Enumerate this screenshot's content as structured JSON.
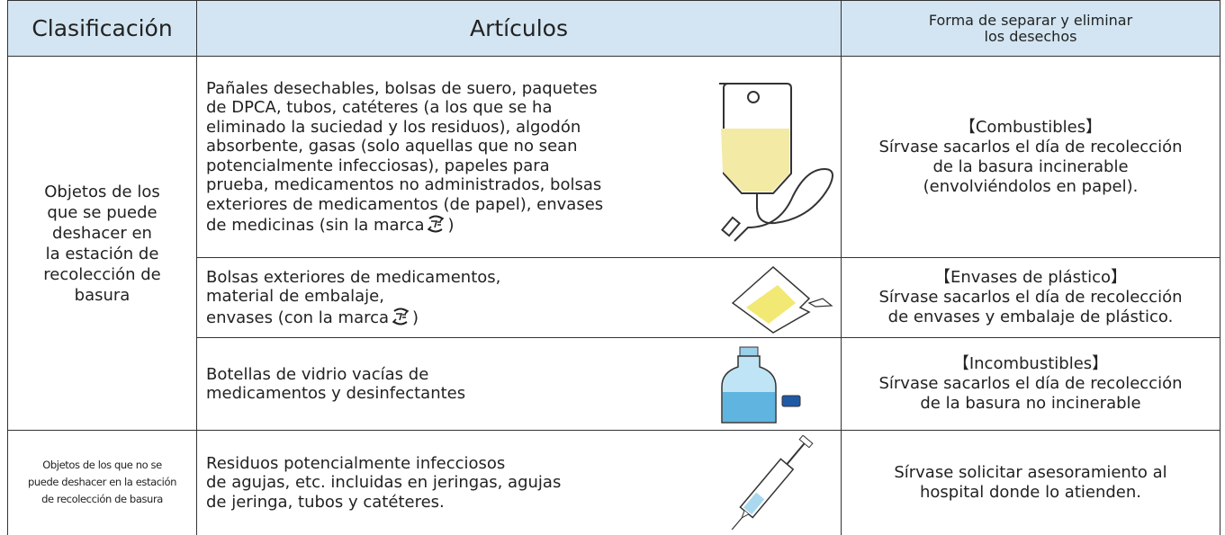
{
  "header": {
    "classification": "Clasificación",
    "articles": "Artículos",
    "disposal": [
      "Forma de separar y eliminar",
      "los desechos"
    ]
  },
  "groups": [
    {
      "classification": [
        "Objetos de los",
        "que se puede",
        "deshacer en",
        "la estación de",
        "recolección de",
        "basura"
      ],
      "rows": [
        {
          "articles": [
            "Pañales desechables, bolsas de suero, paquetes",
            "de DPCA, tubos, catéteres (a los que se ha",
            "eliminado la suciedad y los residuos), algodón",
            "absorbente, gasas (solo aquellas que no sean",
            "potencialmente infecciosas), papeles para",
            "prueba, medicamentos no administrados, bolsas",
            "exteriores de medicamentos (de papel), envases",
            "de medicinas (sin la marca"
          ],
          "articles_after_mark": ")",
          "disposal": [
            "【Combustibles】",
            "Sírvase sacarlos el día de recolección",
            "de la basura incinerable",
            "(envolviéndolos en papel)."
          ]
        },
        {
          "articles": [
            "Bolsas exteriores de medicamentos,",
            "material de embalaje,",
            "envases (con la marca"
          ],
          "articles_after_mark": ")",
          "disposal": [
            "【Envases de plástico】",
            "Sírvase sacarlos el día de recolección",
            "de envases y embalaje de plástico."
          ]
        },
        {
          "articles": [
            "Botellas de vidrio vacías de",
            "medicamentos y desinfectantes"
          ],
          "disposal": [
            "【Incombustibles】",
            "Sírvase sacarlos el día de recolección",
            "de la basura no incinerable"
          ]
        }
      ]
    },
    {
      "classification": [
        "Objetos de los que no se",
        "puede deshacer en la estación",
        "de recolección de basura"
      ],
      "rows": [
        {
          "articles": [
            "Residuos potencialmente infecciosos",
            "de agujas, etc. incluidas en jeringas, agujas",
            "de jeringa, tubos y catéteres."
          ],
          "disposal": [
            "Sírvase solicitar asesoramiento al",
            "hospital donde lo atienden."
          ]
        }
      ]
    }
  ]
}
